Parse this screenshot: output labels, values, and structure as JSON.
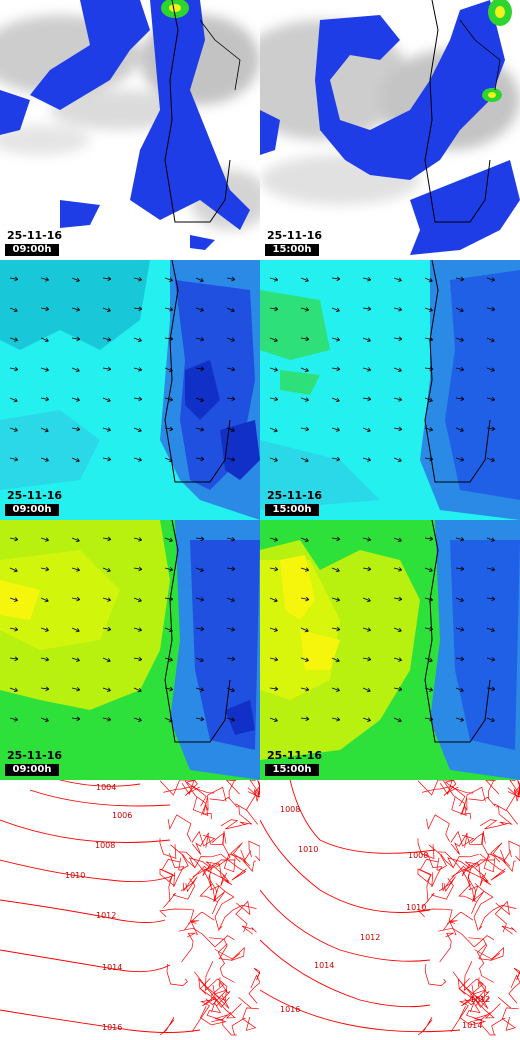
{
  "panels": [
    {
      "row": "clouds",
      "date": "25-11-16",
      "time": "09:00h"
    },
    {
      "row": "clouds",
      "date": "25-11-16",
      "time": "15:00h"
    },
    {
      "row": "wind-speed",
      "date": "25-11-16",
      "time": "09:00h"
    },
    {
      "row": "wind-speed",
      "date": "25-11-16",
      "time": "15:00h"
    },
    {
      "row": "temperature",
      "date": "25-11-16",
      "time": "09:00h"
    },
    {
      "row": "temperature",
      "date": "25-11-16",
      "time": "15:00h"
    },
    {
      "row": "pressure",
      "date": "",
      "time": ""
    },
    {
      "row": "pressure",
      "date": "",
      "time": ""
    }
  ],
  "isobars": {
    "left": [
      "1004",
      "1006",
      "1008",
      "1010",
      "1012",
      "1014",
      "1016"
    ],
    "right": [
      "1008",
      "1010",
      "1008",
      "1010",
      "1012",
      "1014",
      "1016",
      "1012",
      "1014"
    ]
  },
  "colors": {
    "cloud_grey": "#d2d2d2",
    "precip_blue": "#1e3de6",
    "precip_green": "#2ed52e",
    "precip_yellow": "#f2f21e",
    "wind_cyan": "#24f0f0",
    "wind_teal": "#18c8d8",
    "wind_blue": "#2050e0",
    "temp_yellow": "#f6f60c",
    "temp_lime": "#b8f010",
    "temp_green": "#2ee03a",
    "isobar_red": "#ff0000",
    "coast": "#000000"
  }
}
